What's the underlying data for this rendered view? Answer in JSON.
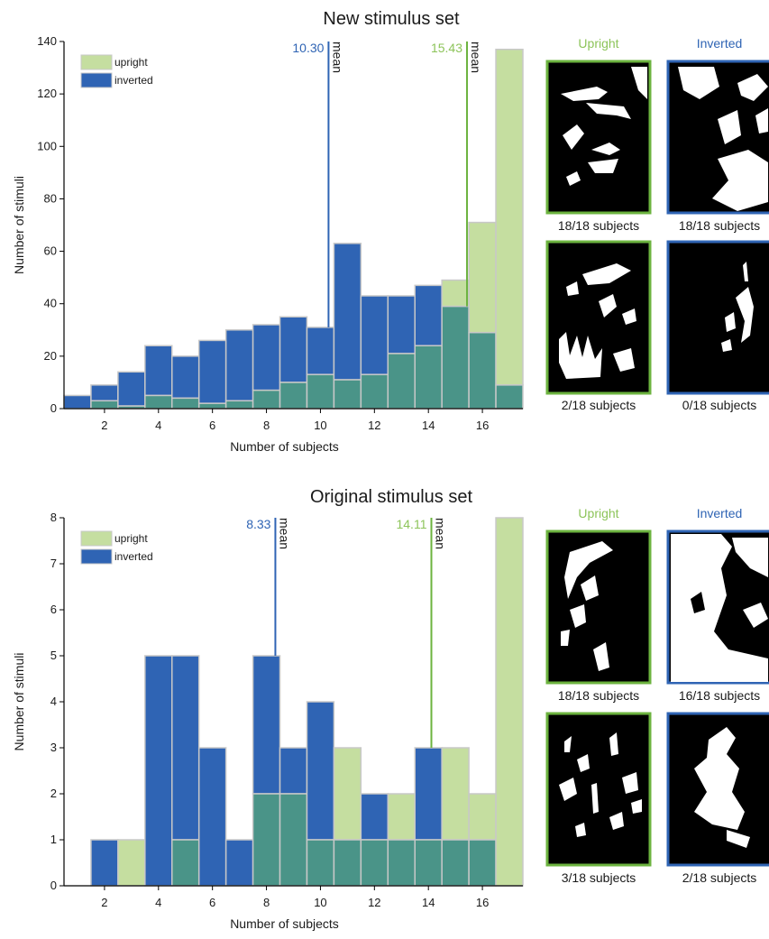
{
  "colors": {
    "upright": "#c5dea0",
    "inverted": "#2f64b4",
    "overlap": "#4a9488",
    "bar_edge": "#c8c8c8",
    "upright_text": "#8dc45a",
    "inverted_text": "#2f64b4",
    "upright_line": "#6cb33f",
    "inverted_line": "#2f64b4"
  },
  "panels": [
    {
      "chart": {
        "type": "bar",
        "title": "New stimulus set",
        "xlabel": "Number of subjects",
        "ylabel": "Number of stimuli",
        "xlim": [
          0.5,
          17.5
        ],
        "ylim": [
          0,
          140
        ],
        "xticks": [
          2,
          4,
          6,
          8,
          10,
          12,
          14,
          16
        ],
        "yticks": [
          0,
          20,
          40,
          60,
          80,
          100,
          120,
          140
        ],
        "x": [
          1,
          2,
          3,
          4,
          5,
          6,
          7,
          8,
          9,
          10,
          11,
          12,
          13,
          14,
          15,
          16,
          17
        ],
        "series": [
          {
            "name": "upright",
            "values": [
              0,
              3,
              1,
              5,
              4,
              2,
              3,
              7,
              10,
              13,
              11,
              13,
              21,
              24,
              49,
              71,
              137
            ]
          },
          {
            "name": "inverted",
            "values": [
              5,
              9,
              14,
              24,
              20,
              26,
              30,
              32,
              35,
              31,
              63,
              43,
              43,
              47,
              39,
              29,
              9
            ]
          }
        ],
        "means": [
          {
            "label": "10.30",
            "word": "mean",
            "value": 10.3,
            "series": "inverted",
            "top": 140,
            "bottom": 31
          },
          {
            "label": "15.43",
            "word": "mean",
            "value": 15.43,
            "series": "upright",
            "top": 140,
            "bottom": 39
          }
        ],
        "legend": {
          "position": "top-left",
          "entries": [
            "upright",
            "inverted"
          ]
        }
      },
      "images": {
        "upright_header": "Upright",
        "inverted_header": "Inverted",
        "captions": [
          "18/18 subjects",
          "18/18 subjects",
          "2/18 subjects",
          "0/18 subjects"
        ]
      }
    },
    {
      "chart": {
        "type": "bar",
        "title": "Original stimulus set",
        "xlabel": "Number of subjects",
        "ylabel": "Number of stimuli",
        "xlim": [
          0.5,
          17.5
        ],
        "ylim": [
          0,
          8
        ],
        "xticks": [
          2,
          4,
          6,
          8,
          10,
          12,
          14,
          16
        ],
        "yticks": [
          0,
          1,
          2,
          3,
          4,
          5,
          6,
          7,
          8
        ],
        "x": [
          1,
          2,
          3,
          4,
          5,
          6,
          7,
          8,
          9,
          10,
          11,
          12,
          13,
          14,
          15,
          16,
          17
        ],
        "series": [
          {
            "name": "upright",
            "values": [
              0,
              0,
              1,
              0,
              1,
              0,
              0,
              2,
              2,
              1,
              3,
              1,
              2,
              1,
              3,
              2,
              8
            ]
          },
          {
            "name": "inverted",
            "values": [
              0,
              1,
              0,
              5,
              5,
              3,
              1,
              5,
              3,
              4,
              1,
              2,
              1,
              3,
              1,
              1,
              0
            ]
          }
        ],
        "means": [
          {
            "label": "8.33",
            "word": "mean",
            "value": 8.33,
            "series": "inverted",
            "top": 8,
            "bottom": 5
          },
          {
            "label": "14.11",
            "word": "mean",
            "value": 14.11,
            "series": "upright",
            "top": 8,
            "bottom": 3
          }
        ],
        "legend": {
          "position": "top-left",
          "entries": [
            "upright",
            "inverted"
          ]
        }
      },
      "images": {
        "upright_header": "Upright",
        "inverted_header": "Inverted",
        "captions": [
          "18/18 subjects",
          "16/18 subjects",
          "3/18 subjects",
          "2/18 subjects"
        ]
      }
    }
  ]
}
